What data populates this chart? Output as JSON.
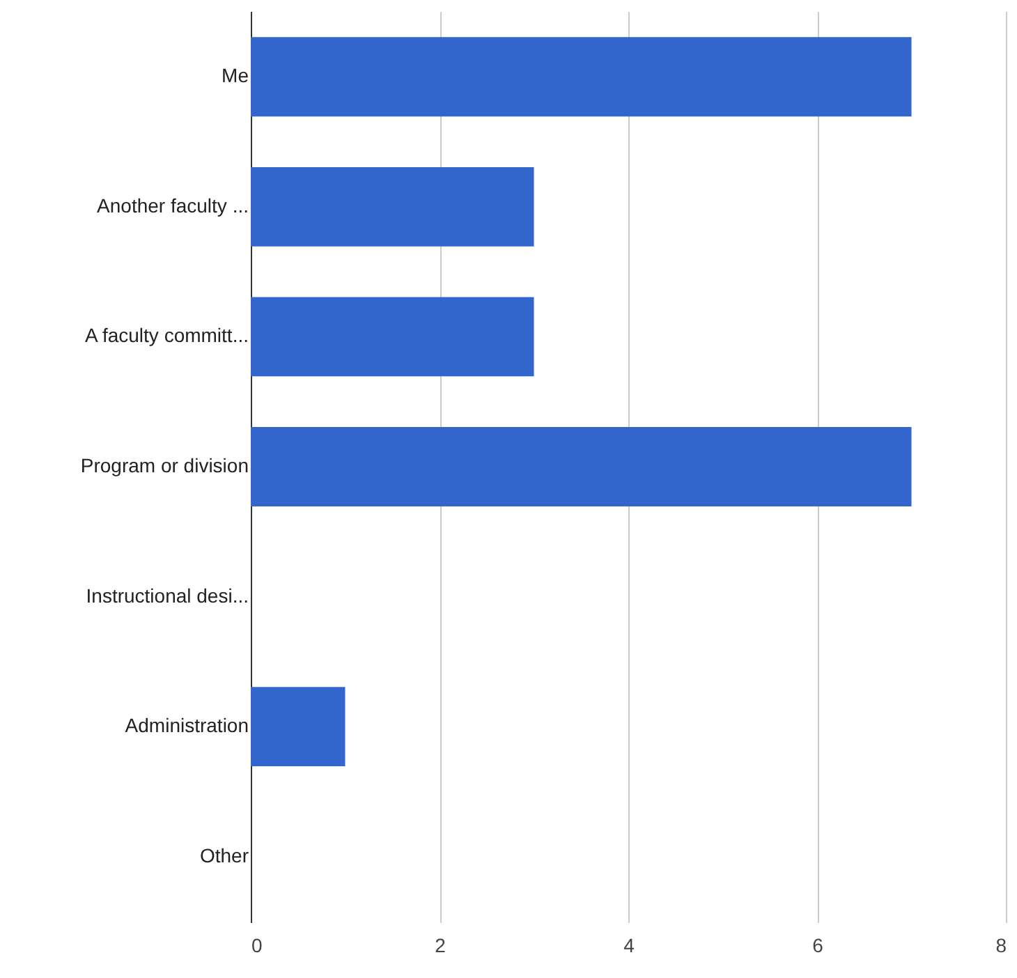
{
  "chart_data": {
    "type": "bar",
    "orientation": "horizontal",
    "categories": [
      "Me",
      "Another faculty ...",
      "A faculty committ...",
      "Program or division",
      "Instructional desi...",
      "Administration",
      "Other"
    ],
    "values": [
      7,
      3,
      3,
      7,
      0,
      1,
      0
    ],
    "color": "#3366cc",
    "xlim": [
      0,
      8
    ],
    "xticks": [
      0,
      2,
      4,
      6,
      8
    ],
    "grid": "x"
  }
}
